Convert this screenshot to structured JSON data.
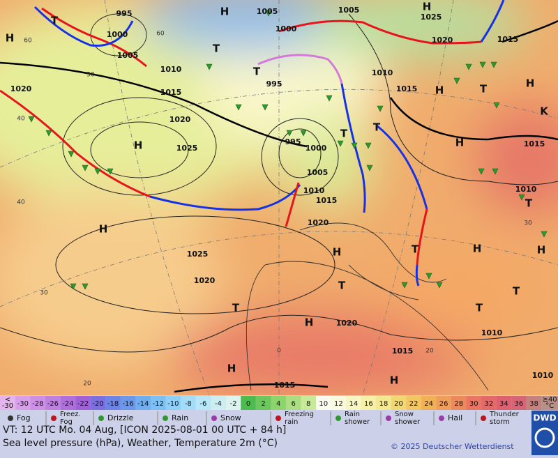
{
  "map": {
    "pressure_labels": [
      "995",
      "1000",
      "1005",
      "1010",
      "1015",
      "1020",
      "1025",
      "1020",
      "1005",
      "1000",
      "995",
      "1005",
      "1025",
      "1020",
      "1015",
      "1010",
      "1015",
      "1015",
      "1010",
      "995",
      "1000",
      "1005",
      "1010",
      "1015",
      "1020",
      "1025",
      "1020",
      "1020",
      "1010",
      "1015",
      "1015",
      "1010"
    ],
    "centers": [
      "H",
      "H",
      "H",
      "H",
      "H",
      "H",
      "H",
      "H",
      "H",
      "H",
      "H",
      "H",
      "H",
      "H",
      "T",
      "T",
      "T",
      "T",
      "T",
      "T",
      "T",
      "T",
      "T",
      "T",
      "T",
      "T",
      "K"
    ],
    "isotherm_labels": [
      "60",
      "60",
      "50",
      "40",
      "40",
      "30",
      "20",
      "0",
      "20",
      "30"
    ]
  },
  "colorbar": {
    "low": [
      "<",
      "-30"
    ],
    "labels": [
      "-30",
      "-28",
      "-26",
      "-24",
      "-22",
      "-20",
      "-18",
      "-16",
      "-14",
      "-12",
      "-10",
      "-8",
      "-6",
      "-4",
      "-2",
      "0",
      "2",
      "4",
      "6",
      "8",
      "10",
      "12",
      "14",
      "16",
      "18",
      "20",
      "22",
      "24",
      "26",
      "28",
      "30",
      "32",
      "34",
      "36",
      "38"
    ],
    "high": [
      "≥40",
      "°C"
    ]
  },
  "legend": [
    [
      "Fog"
    ],
    [
      "Freez.",
      "Fog"
    ],
    [
      "Drizzle"
    ],
    [
      "Rain"
    ],
    [
      "Snow"
    ],
    [
      "Freezing",
      "rain"
    ],
    [
      "Rain",
      "shower"
    ],
    [
      "Snow",
      "shower"
    ],
    [
      "Hail"
    ],
    [
      "Thunder",
      "storm"
    ]
  ],
  "footer": {
    "valid_time": "VT: 12 UTC Mo.   04 Aug, [ICON 2025-08-01  00 UTC + 84 h]",
    "description": "Sea level pressure (hPa), Weather, Temperature 2m (°C)",
    "copyright": "© 2025 Deutscher Wetterdienst",
    "logo": "DWD"
  }
}
